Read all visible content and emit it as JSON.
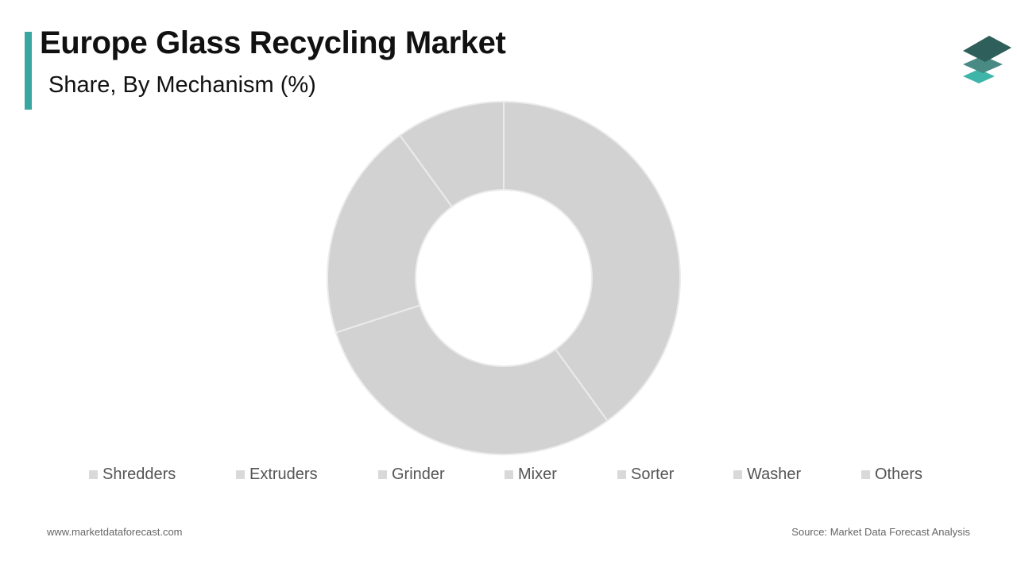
{
  "header": {
    "title": "Europe Glass Recycling Market",
    "subtitle": "Share, By Mechanism (%)"
  },
  "logo": {
    "icon": "stacked-layers-icon",
    "colors": [
      "#2f5f5a",
      "#4a8a84",
      "#3fb5aa"
    ]
  },
  "colors": {
    "accent": "#3aa6a0",
    "slice_fill": "#d3d2d2",
    "slice_border": "#ebebeb",
    "legend_swatch": "#d9d9d9"
  },
  "legend": [
    {
      "label": "Shredders"
    },
    {
      "label": "Extruders"
    },
    {
      "label": "Grinder"
    },
    {
      "label": "Mixer"
    },
    {
      "label": "Sorter"
    },
    {
      "label": "Washer"
    },
    {
      "label": "Others"
    }
  ],
  "chart_data": {
    "type": "pie",
    "donut": true,
    "categories": [
      "Shredders",
      "Extruders",
      "Grinder",
      "Mixer",
      "Sorter",
      "Washer",
      "Others"
    ],
    "values": [
      40,
      30,
      20,
      10,
      0,
      0,
      0
    ],
    "title": "Europe Glass Recycling Market",
    "subtitle": "Share, By Mechanism (%)",
    "legend_position": "bottom"
  },
  "footer": {
    "website": "www.marketdataforecast.com",
    "source": "Source: Market Data Forecast Analysis"
  }
}
